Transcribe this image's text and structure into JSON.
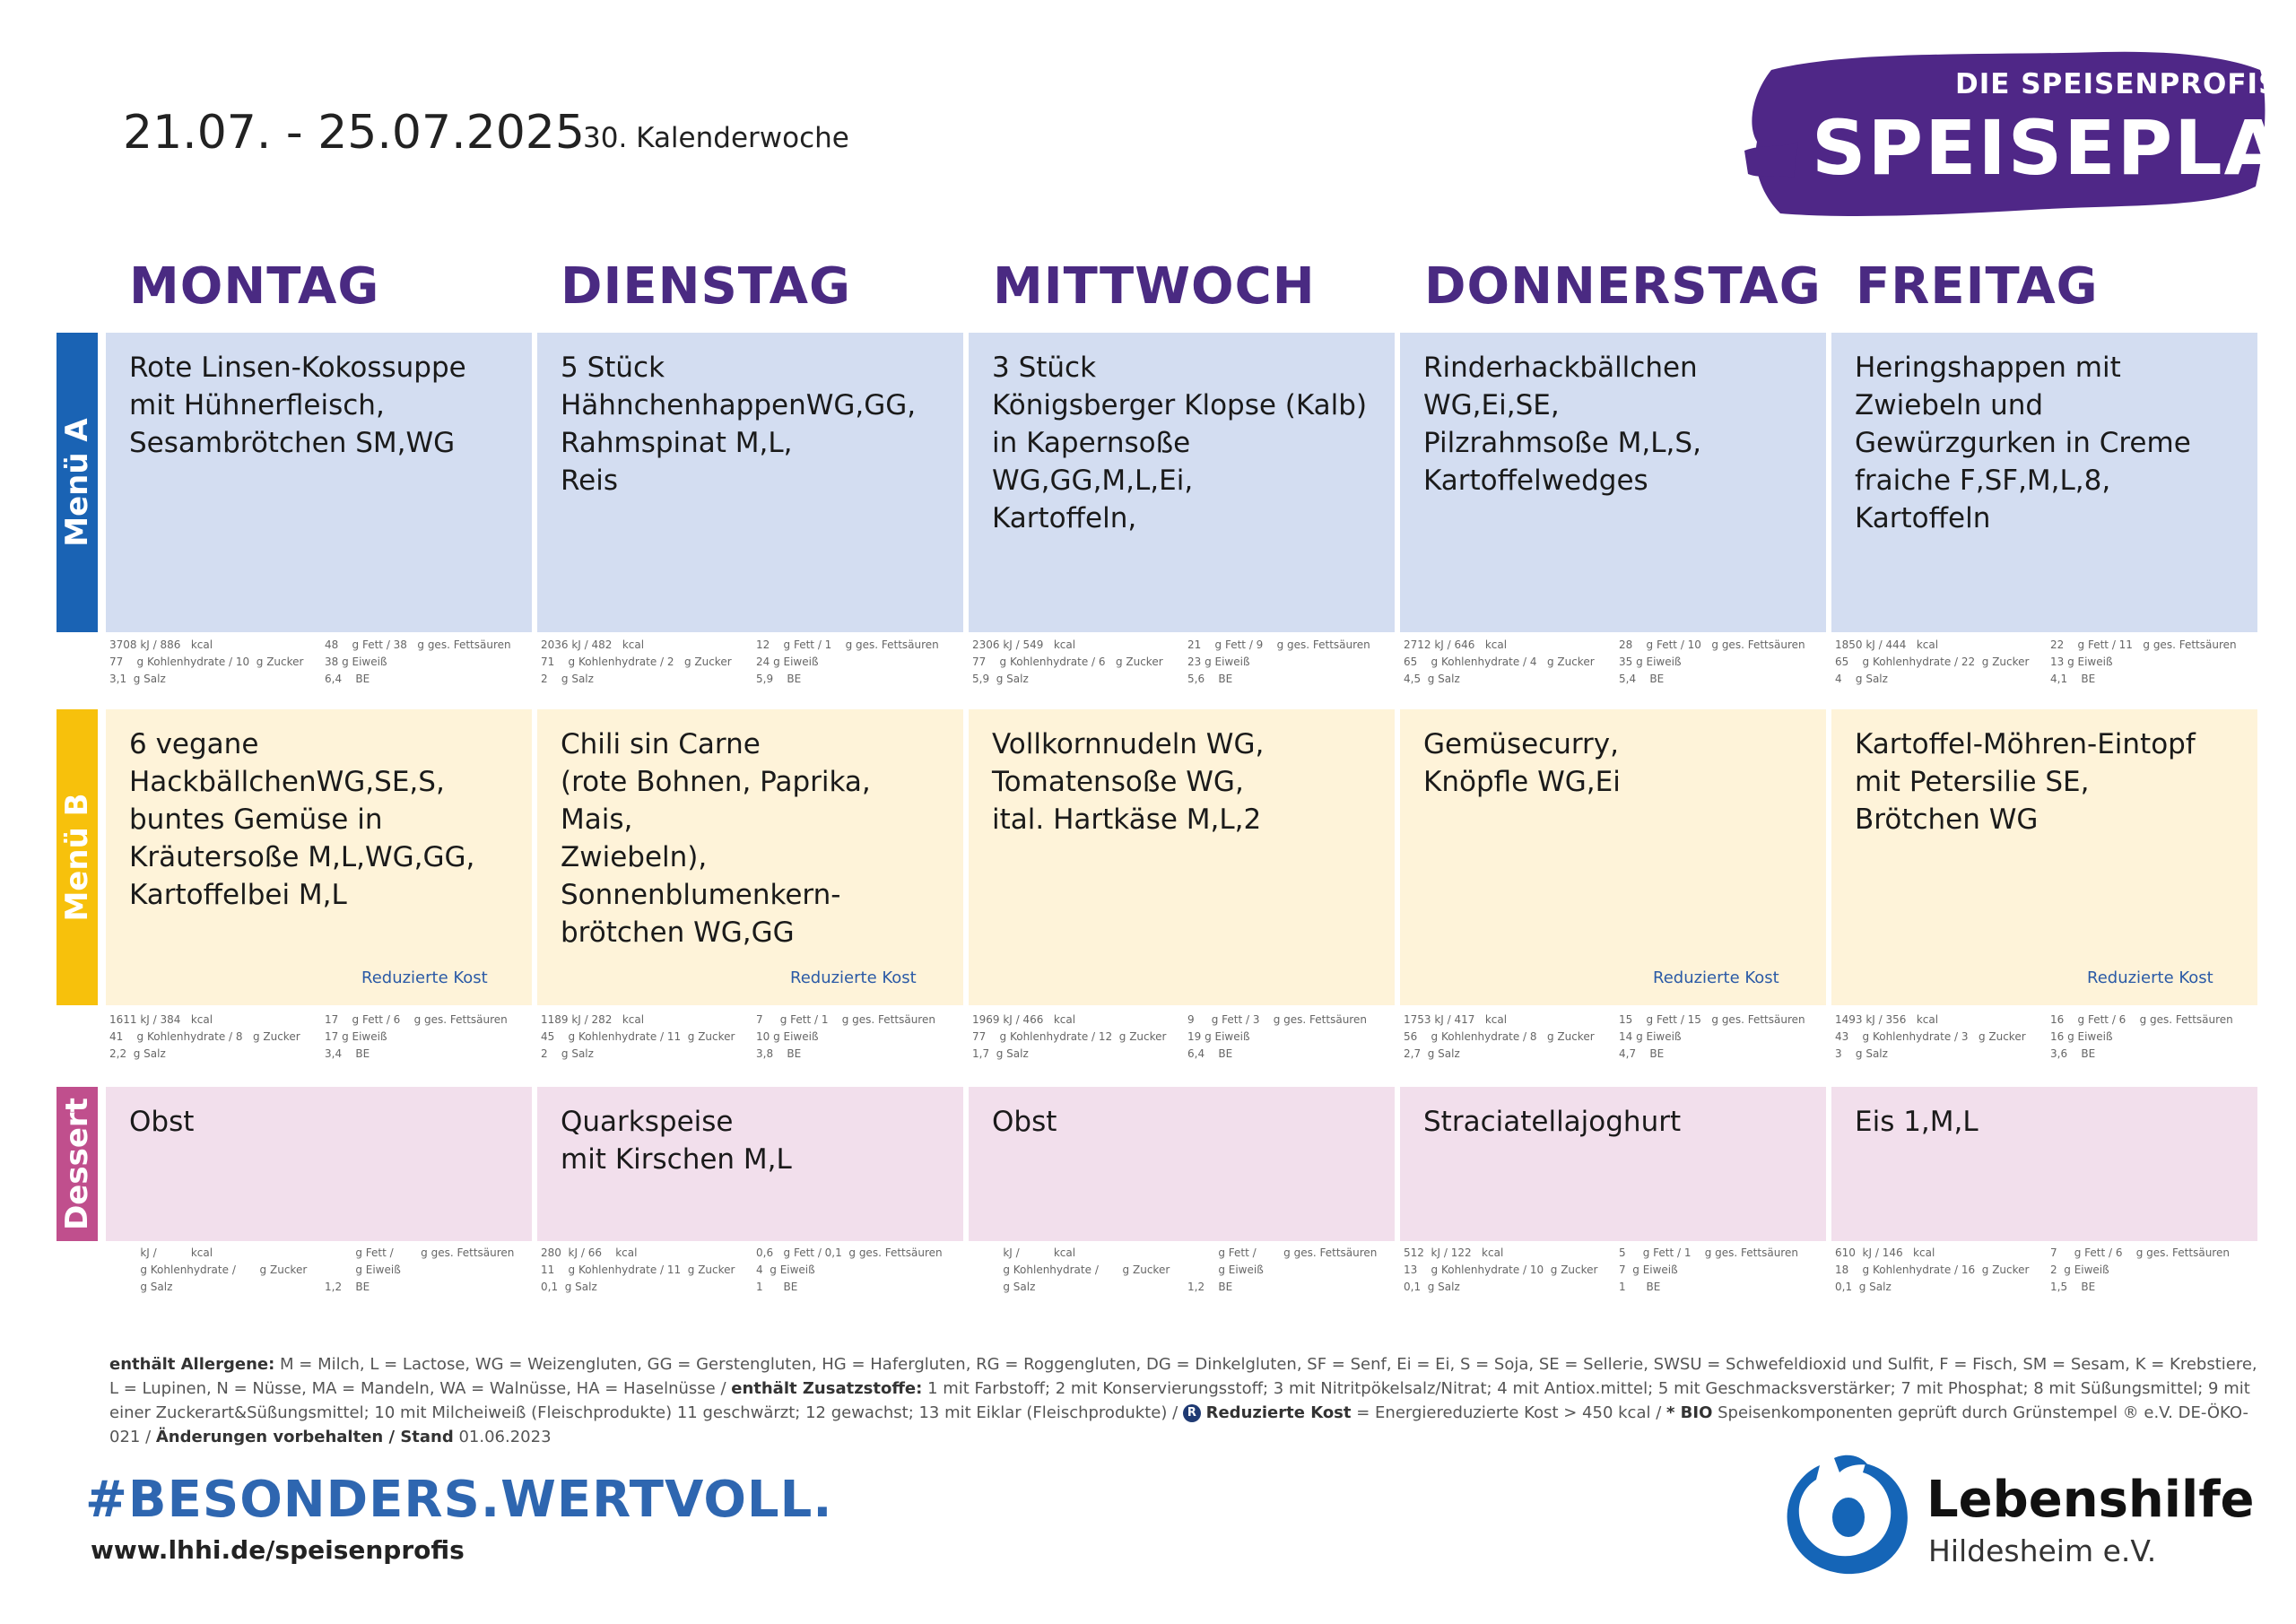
{
  "header": {
    "date_range": "21.07. - 25.07.2025",
    "calendar_week": "30. Kalenderwoche",
    "brand_sub": "DIE SPEISENPROFIS",
    "brand_title": "SPEISEPLAN"
  },
  "rows": {
    "menu_a": "Menü A",
    "menu_b": "Menü B",
    "dessert": "Dessert"
  },
  "colors": {
    "brand_purple": "#4a2a82",
    "menu_a_bar": "#1a63b4",
    "menu_b_bar": "#f7c10c",
    "dessert_bar": "#c04f8d",
    "menu_a_bg": "#d3ddf1",
    "menu_b_bg": "#fef3d9",
    "dessert_bg": "#f2dfec"
  },
  "reduced_label": "Reduzierte Kost",
  "days": [
    {
      "name": "MONTAG",
      "menu_a": {
        "text": "Rote Linsen-Kokossuppe\nmit Hühnerfleisch,\nSesambrötchen SM,WG",
        "n1": "3708 kJ / 886   kcal",
        "n2": "77    g Kohlenhydrate / 10  g Zucker",
        "n3": "3,1  g Salz",
        "n4": "48    g Fett / 38   g ges. Fettsäuren",
        "n5": "38 g Eiweiß",
        "n6": "6,4    BE"
      },
      "menu_b": {
        "text": "6 vegane\nHackbällchenWG,SE,S,\nbuntes Gemüse in\nKräutersoße M,L,WG,GG,\nKartoffelbei M,L",
        "reduced": true,
        "n1": "1611 kJ / 384   kcal",
        "n2": "41    g Kohlenhydrate / 8   g Zucker",
        "n3": "2,2  g Salz",
        "n4": "17    g Fett / 6    g ges. Fettsäuren",
        "n5": "17 g Eiweiß",
        "n6": "3,4    BE"
      },
      "dessert": {
        "text": "Obst",
        "n1": "         kJ /          kcal",
        "n2": "         g Kohlenhydrate /       g Zucker",
        "n3": "         g Salz",
        "n4": "         g Fett /        g ges. Fettsäuren",
        "n5": "         g Eiweiß",
        "n6": "1,2    BE"
      }
    },
    {
      "name": "DIENSTAG",
      "menu_a": {
        "text": "5 Stück\nHähnchenhappenWG,GG,\nRahmspinat M,L,\nReis",
        "n1": "2036 kJ / 482   kcal",
        "n2": "71    g Kohlenhydrate / 2   g Zucker",
        "n3": "2    g Salz",
        "n4": "12    g Fett / 1    g ges. Fettsäuren",
        "n5": "24 g Eiweiß",
        "n6": "5,9    BE"
      },
      "menu_b": {
        "text": "Chili sin Carne\n(rote Bohnen, Paprika, Mais,\nZwiebeln),\nSonnenblumenkern-\nbrötchen WG,GG",
        "reduced": true,
        "n1": "1189 kJ / 282   kcal",
        "n2": "45    g Kohlenhydrate / 11  g Zucker",
        "n3": "2    g Salz",
        "n4": "7     g Fett / 1    g ges. Fettsäuren",
        "n5": "10 g Eiweiß",
        "n6": "3,8    BE"
      },
      "dessert": {
        "text": "Quarkspeise\nmit Kirschen M,L",
        "n1": "280  kJ / 66    kcal",
        "n2": "11    g Kohlenhydrate / 11  g Zucker",
        "n3": "0,1  g Salz",
        "n4": "0,6   g Fett / 0,1  g ges. Fettsäuren",
        "n5": "4  g Eiweiß",
        "n6": "1      BE"
      }
    },
    {
      "name": "MITTWOCH",
      "menu_a": {
        "text": "3 Stück\nKönigsberger Klopse (Kalb)\nin Kapernsoße\nWG,GG,M,L,Ei,\nKartoffeln,",
        "n1": "2306 kJ / 549   kcal",
        "n2": "77    g Kohlenhydrate / 6   g Zucker",
        "n3": "5,9  g Salz",
        "n4": "21    g Fett / 9    g ges. Fettsäuren",
        "n5": "23 g Eiweiß",
        "n6": "5,6    BE"
      },
      "menu_b": {
        "text": "Vollkornnudeln WG,\nTomatensoße WG,\nital. Hartkäse M,L,2",
        "reduced": false,
        "n1": "1969 kJ / 466   kcal",
        "n2": "77    g Kohlenhydrate / 12  g Zucker",
        "n3": "1,7  g Salz",
        "n4": "9     g Fett / 3    g ges. Fettsäuren",
        "n5": "19 g Eiweiß",
        "n6": "6,4    BE"
      },
      "dessert": {
        "text": "Obst",
        "n1": "         kJ /          kcal",
        "n2": "         g Kohlenhydrate /       g Zucker",
        "n3": "         g Salz",
        "n4": "         g Fett /        g ges. Fettsäuren",
        "n5": "         g Eiweiß",
        "n6": "1,2    BE"
      }
    },
    {
      "name": "DONNERSTAG",
      "menu_a": {
        "text": "Rinderhackbällchen\nWG,Ei,SE,\nPilzrahmsoße M,L,S,\nKartoffelwedges",
        "n1": "2712 kJ / 646   kcal",
        "n2": "65    g Kohlenhydrate / 4   g Zucker",
        "n3": "4,5  g Salz",
        "n4": "28    g Fett / 10   g ges. Fettsäuren",
        "n5": "35 g Eiweiß",
        "n6": "5,4    BE"
      },
      "menu_b": {
        "text": "Gemüsecurry,\nKnöpfle WG,Ei",
        "reduced": true,
        "n1": "1753 kJ / 417   kcal",
        "n2": "56    g Kohlenhydrate / 8   g Zucker",
        "n3": "2,7  g Salz",
        "n4": "15    g Fett / 15   g ges. Fettsäuren",
        "n5": "14 g Eiweiß",
        "n6": "4,7    BE"
      },
      "dessert": {
        "text": "Straciatellajoghurt",
        "n1": "512  kJ / 122   kcal",
        "n2": "13    g Kohlenhydrate / 10  g Zucker",
        "n3": "0,1  g Salz",
        "n4": "5     g Fett / 1    g ges. Fettsäuren",
        "n5": "7  g Eiweiß",
        "n6": "1      BE"
      }
    },
    {
      "name": "FREITAG",
      "menu_a": {
        "text": "Heringshappen mit\nZwiebeln und\nGewürzgurken in Creme\nfraiche F,SF,M,L,8,\nKartoffeln",
        "n1": "1850 kJ / 444   kcal",
        "n2": "65    g Kohlenhydrate / 22  g Zucker",
        "n3": "4    g Salz",
        "n4": "22    g Fett / 11   g ges. Fettsäuren",
        "n5": "13 g Eiweiß",
        "n6": "4,1    BE"
      },
      "menu_b": {
        "text": "Kartoffel-Möhren-Eintopf\nmit Petersilie SE,\nBrötchen WG",
        "reduced": true,
        "n1": "1493 kJ / 356   kcal",
        "n2": "43    g Kohlenhydrate / 3   g Zucker",
        "n3": "3    g Salz",
        "n4": "16    g Fett / 6    g ges. Fettsäuren",
        "n5": "16 g Eiweiß",
        "n6": "3,6    BE"
      },
      "dessert": {
        "text": "Eis 1,M,L",
        "n1": "610  kJ / 146   kcal",
        "n2": "18    g Kohlenhydrate / 16  g Zucker",
        "n3": "0,1  g Salz",
        "n4": "7     g Fett / 6    g ges. Fettsäuren",
        "n5": "2  g Eiweiß",
        "n6": "1,5    BE"
      }
    }
  ],
  "footer": {
    "allergens_label": "enthält Allergene:",
    "allergens": " M = Milch, L = Lactose, WG = Weizengluten, GG = Gerstengluten, HG = Hafergluten, RG = Roggengluten, DG = Dinkelgluten, SF = Senf, Ei = Ei, S = Soja, SE = Sellerie, SWSU = Schwefeldioxid und Sulfit, F = Fisch, SM = Sesam, K = Krebstiere, L = Lupinen, N = Nüsse, MA = Mandeln, WA = Walnüsse, HA =  Haselnüsse / ",
    "additives_label": "enthält Zusatzstoffe:",
    "additives": " 1 mit Farbstoff; 2 mit Konservierungsstoff; 3 mit Nitritpökelsalz/Nitrat; 4 mit Antiox.mittel; 5 mit Geschmacksverstärker; 7 mit Phosphat; 8 mit Süßungsmittel; 9 mit einer Zuckerart&Süßungsmittel; 10 mit Milcheiweiß (Fleischprodukte) 11 geschwärzt; 12 gewachst; 13 mit Eiklar (Fleischprodukte) / ",
    "r_badge": "R",
    "reduced_label": "Reduzierte Kost",
    "reduced_text": " = Energiereduzierte Kost > 450 kcal / ",
    "bio_label": "* BIO",
    "bio_text": " Speisenkomponenten geprüft durch Grünstempel ® e.V. DE-ÖKO-021 / ",
    "changes_label": "Änderungen vorbehalten / Stand",
    "stand_date": " 01.06.2023"
  },
  "bottom": {
    "hashtag": "#BESONDERS.WERTVOLL.",
    "website": "www.lhhi.de/speisenprofis",
    "org_name": "Lebenshilfe",
    "org_city": "Hildesheim e.V."
  }
}
